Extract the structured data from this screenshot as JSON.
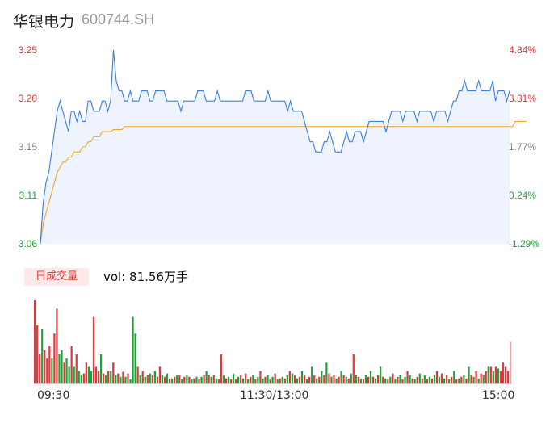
{
  "header": {
    "name": "华银电力",
    "code": "600744.SH"
  },
  "colors": {
    "up": "#e5363a",
    "down": "#1aa53a",
    "neutral": "#888888",
    "price_line": "#3b7fe6",
    "avg_line": "#f5a623",
    "badge_bg": "#fde9e7"
  },
  "volume_panel": {
    "badge": "日成交量",
    "vol_text": "vol: 81.56万手"
  },
  "chart_data": [
    {
      "type": "line",
      "ylim": [
        3.06,
        3.25
      ],
      "y_ticks": [
        "3.25",
        "3.20",
        "3.15",
        "3.11",
        "3.06"
      ],
      "pct_ticks": [
        "4.84%",
        "3.31%",
        "1.77%",
        "0.24%",
        "-1.29%"
      ],
      "x_ticks": [
        "09:30",
        "11:30/13:00",
        "15:00"
      ],
      "series": [
        {
          "values": [
            3.06,
            3.1,
            3.12,
            3.13,
            3.15,
            3.17,
            3.19,
            3.2,
            3.19,
            3.18,
            3.17,
            3.19,
            3.19,
            3.18,
            3.19,
            3.18,
            3.18,
            3.2,
            3.2,
            3.19,
            3.19,
            3.19,
            3.2,
            3.2,
            3.19,
            3.2,
            3.25,
            3.22,
            3.21,
            3.21,
            3.2,
            3.2,
            3.21,
            3.2,
            3.2,
            3.2,
            3.21,
            3.21,
            3.21,
            3.2,
            3.2,
            3.21,
            3.21,
            3.21,
            3.21,
            3.2,
            3.2,
            3.2,
            3.2,
            3.2,
            3.19,
            3.2,
            3.2,
            3.2,
            3.2,
            3.2,
            3.21,
            3.21,
            3.21,
            3.2,
            3.2,
            3.2,
            3.2,
            3.21,
            3.2,
            3.2,
            3.2,
            3.2,
            3.2,
            3.2,
            3.2,
            3.2,
            3.2,
            3.21,
            3.21,
            3.21,
            3.2,
            3.2,
            3.2,
            3.2,
            3.2,
            3.21,
            3.2,
            3.2,
            3.2,
            3.2,
            3.2,
            3.2,
            3.19,
            3.2,
            3.19,
            3.19,
            3.19,
            3.19,
            3.18,
            3.17,
            3.16,
            3.16,
            3.15,
            3.15,
            3.15,
            3.16,
            3.16,
            3.17,
            3.16,
            3.15,
            3.15,
            3.15,
            3.16,
            3.17,
            3.16,
            3.16,
            3.17,
            3.17,
            3.17,
            3.16,
            3.17,
            3.18,
            3.18,
            3.18,
            3.18,
            3.18,
            3.18,
            3.17,
            3.18,
            3.19,
            3.19,
            3.19,
            3.19,
            3.18,
            3.19,
            3.19,
            3.19,
            3.19,
            3.18,
            3.19,
            3.19,
            3.19,
            3.19,
            3.19,
            3.18,
            3.19,
            3.19,
            3.19,
            3.19,
            3.18,
            3.19,
            3.2,
            3.2,
            3.21,
            3.21,
            3.22,
            3.21,
            3.21,
            3.21,
            3.21,
            3.22,
            3.21,
            3.21,
            3.21,
            3.21,
            3.22,
            3.2,
            3.21,
            3.21,
            3.21,
            3.2,
            3.21
          ],
          "color": "#3b7fe6"
        },
        {
          "values": [
            3.06,
            3.08,
            3.09,
            3.1,
            3.11,
            3.12,
            3.13,
            3.135,
            3.14,
            3.14,
            3.145,
            3.145,
            3.15,
            3.15,
            3.15,
            3.155,
            3.155,
            3.16,
            3.16,
            3.165,
            3.165,
            3.165,
            3.17,
            3.17,
            3.17,
            3.17,
            3.172,
            3.172,
            3.172,
            3.172,
            3.175,
            3.175,
            3.175,
            3.175,
            3.175,
            3.175,
            3.175,
            3.175,
            3.175,
            3.175,
            3.175,
            3.175,
            3.175,
            3.175,
            3.175,
            3.175,
            3.175,
            3.175,
            3.175,
            3.175,
            3.175,
            3.175,
            3.175,
            3.175,
            3.175,
            3.175,
            3.175,
            3.175,
            3.175,
            3.175,
            3.175,
            3.175,
            3.175,
            3.175,
            3.175,
            3.175,
            3.175,
            3.175,
            3.175,
            3.175,
            3.175,
            3.175,
            3.175,
            3.175,
            3.175,
            3.175,
            3.175,
            3.175,
            3.175,
            3.175,
            3.175,
            3.175,
            3.175,
            3.175,
            3.175,
            3.175,
            3.175,
            3.175,
            3.175,
            3.175,
            3.175,
            3.175,
            3.175,
            3.175,
            3.175,
            3.175,
            3.175,
            3.175,
            3.175,
            3.175,
            3.175,
            3.175,
            3.175,
            3.175,
            3.175,
            3.175,
            3.175,
            3.175,
            3.175,
            3.175,
            3.175,
            3.175,
            3.175,
            3.175,
            3.175,
            3.175,
            3.175,
            3.175,
            3.175,
            3.175,
            3.175,
            3.175,
            3.175,
            3.175,
            3.175,
            3.175,
            3.175,
            3.175,
            3.175,
            3.175,
            3.175,
            3.175,
            3.175,
            3.175,
            3.175,
            3.175,
            3.175,
            3.175,
            3.175,
            3.175,
            3.175,
            3.175,
            3.175,
            3.175,
            3.175,
            3.175,
            3.175,
            3.175,
            3.175,
            3.175,
            3.175,
            3.175,
            3.175,
            3.175,
            3.175,
            3.175,
            3.175,
            3.175,
            3.175,
            3.175,
            3.175,
            3.175,
            3.175,
            3.175,
            3.175,
            3.175,
            3.175,
            3.175,
            3.175,
            3.18,
            3.18,
            3.18,
            3.18,
            3.18
          ],
          "color": "#f5a623"
        }
      ]
    },
    {
      "type": "bar",
      "x_ticks": [
        "09:30",
        "11:30/13:00",
        "15:00"
      ],
      "values": [
        100,
        70,
        35,
        65,
        40,
        30,
        45,
        30,
        60,
        90,
        35,
        40,
        25,
        30,
        20,
        45,
        20,
        35,
        15,
        10,
        12,
        25,
        20,
        15,
        80,
        20,
        15,
        35,
        12,
        10,
        15,
        15,
        25,
        10,
        12,
        8,
        14,
        8,
        12,
        5,
        80,
        60,
        20,
        10,
        15,
        8,
        10,
        12,
        10,
        15,
        8,
        20,
        10,
        8,
        12,
        6,
        6,
        8,
        10,
        10,
        5,
        8,
        10,
        8,
        5,
        6,
        8,
        5,
        8,
        10,
        15,
        10,
        8,
        10,
        6,
        5,
        35,
        10,
        6,
        8,
        5,
        12,
        5,
        8,
        10,
        6,
        12,
        5,
        8,
        10,
        5,
        8,
        15,
        6,
        8,
        10,
        5,
        8,
        12,
        5,
        6,
        8,
        6,
        10,
        15,
        12,
        10,
        6,
        8,
        15,
        10,
        5,
        8,
        20,
        10,
        6,
        8,
        15,
        10,
        25,
        12,
        8,
        10,
        6,
        8,
        15,
        10,
        8,
        6,
        12,
        35,
        10,
        8,
        6,
        5,
        10,
        8,
        15,
        8,
        6,
        10,
        20,
        8,
        6,
        5,
        8,
        12,
        6,
        8,
        10,
        5,
        8,
        15,
        10,
        6,
        5,
        8,
        12,
        6,
        10,
        5,
        8,
        6,
        10,
        15,
        8,
        12,
        6,
        10,
        5,
        8,
        15,
        5,
        6,
        8,
        10,
        6,
        20,
        10,
        8,
        15,
        6,
        12,
        10,
        15,
        20,
        20,
        15,
        20,
        18,
        15,
        25,
        20,
        15,
        50
      ],
      "directions": [
        "up",
        "up",
        "up",
        "down",
        "up",
        "up",
        "up",
        "down",
        "up",
        "up",
        "down",
        "down",
        "up",
        "down",
        "down",
        "up",
        "down",
        "up",
        "down",
        "down",
        "up",
        "up",
        "down",
        "down",
        "up",
        "up",
        "up",
        "down",
        "up",
        "down",
        "up",
        "down",
        "up",
        "down",
        "up",
        "down",
        "up",
        "down",
        "up",
        "down",
        "down",
        "down",
        "up",
        "down",
        "up",
        "down",
        "up",
        "down",
        "up",
        "down",
        "up",
        "up",
        "down",
        "up",
        "down",
        "up",
        "down",
        "up",
        "down",
        "up",
        "down",
        "up",
        "down",
        "up",
        "down",
        "up",
        "down",
        "up",
        "down",
        "up",
        "down",
        "up",
        "down",
        "up",
        "down",
        "up",
        "up",
        "down",
        "up",
        "down",
        "up",
        "down",
        "up",
        "down",
        "up",
        "down",
        "up",
        "down",
        "up",
        "down",
        "up",
        "down",
        "up",
        "down",
        "up",
        "down",
        "up",
        "down",
        "up",
        "down",
        "up",
        "down",
        "up",
        "down",
        "up",
        "down",
        "up",
        "down",
        "up",
        "down",
        "up",
        "down",
        "up",
        "down",
        "up",
        "down",
        "up",
        "down",
        "up",
        "down",
        "up",
        "down",
        "up",
        "down",
        "up",
        "down",
        "up",
        "down",
        "up",
        "down",
        "up",
        "down",
        "up",
        "down",
        "up",
        "down",
        "up",
        "down",
        "up",
        "down",
        "up",
        "down",
        "up",
        "down",
        "up",
        "down",
        "up",
        "down",
        "up",
        "down",
        "up",
        "down",
        "up",
        "down",
        "up",
        "down",
        "up",
        "down",
        "up",
        "down",
        "up",
        "down",
        "up",
        "down",
        "up",
        "down",
        "up",
        "down",
        "up",
        "down",
        "up",
        "down",
        "up",
        "down",
        "up",
        "down",
        "up",
        "down",
        "up",
        "down",
        "up",
        "down",
        "up",
        "down",
        "up",
        "down",
        "up",
        "down",
        "up",
        "down",
        "up",
        "up",
        "up",
        "up",
        "neutral"
      ]
    }
  ]
}
